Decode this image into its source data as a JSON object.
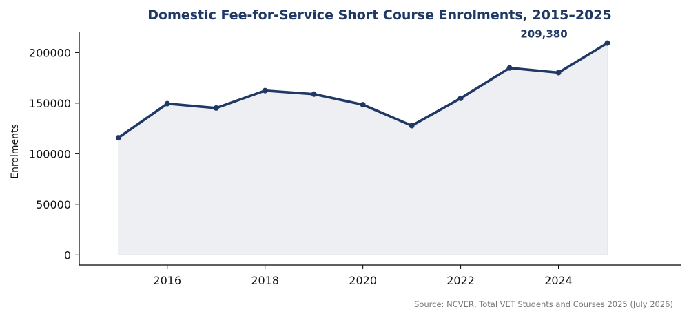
{
  "colors": {
    "line": "#1f3864",
    "fill": "#1f3864",
    "axis": "#000000",
    "source": "#777777"
  },
  "chart_data": {
    "type": "area",
    "title": "Domestic Fee-for-Service Short Course Enrolments, 2015–2025",
    "xlabel": "",
    "ylabel": "Enrolments",
    "x": [
      2015,
      2016,
      2017,
      2018,
      2019,
      2020,
      2021,
      2022,
      2023,
      2024,
      2025
    ],
    "series": [
      {
        "values": [
          115800,
          149500,
          145200,
          162400,
          158900,
          148500,
          127800,
          154800,
          184800,
          180200,
          209380
        ]
      }
    ],
    "xticks": [
      "2016",
      "2018",
      "2020",
      "2022",
      "2024"
    ],
    "yticks": [
      "0",
      "50000",
      "100000",
      "150000",
      "200000"
    ],
    "xlim": [
      2014.2,
      2026.5
    ],
    "ylim": [
      -10000,
      220000
    ],
    "annotation": {
      "x": 2025,
      "text": "209,380"
    },
    "grid": false,
    "legend": "none",
    "source": "Source: NCVER, Total VET Students and Courses 2025 (July 2026)"
  }
}
